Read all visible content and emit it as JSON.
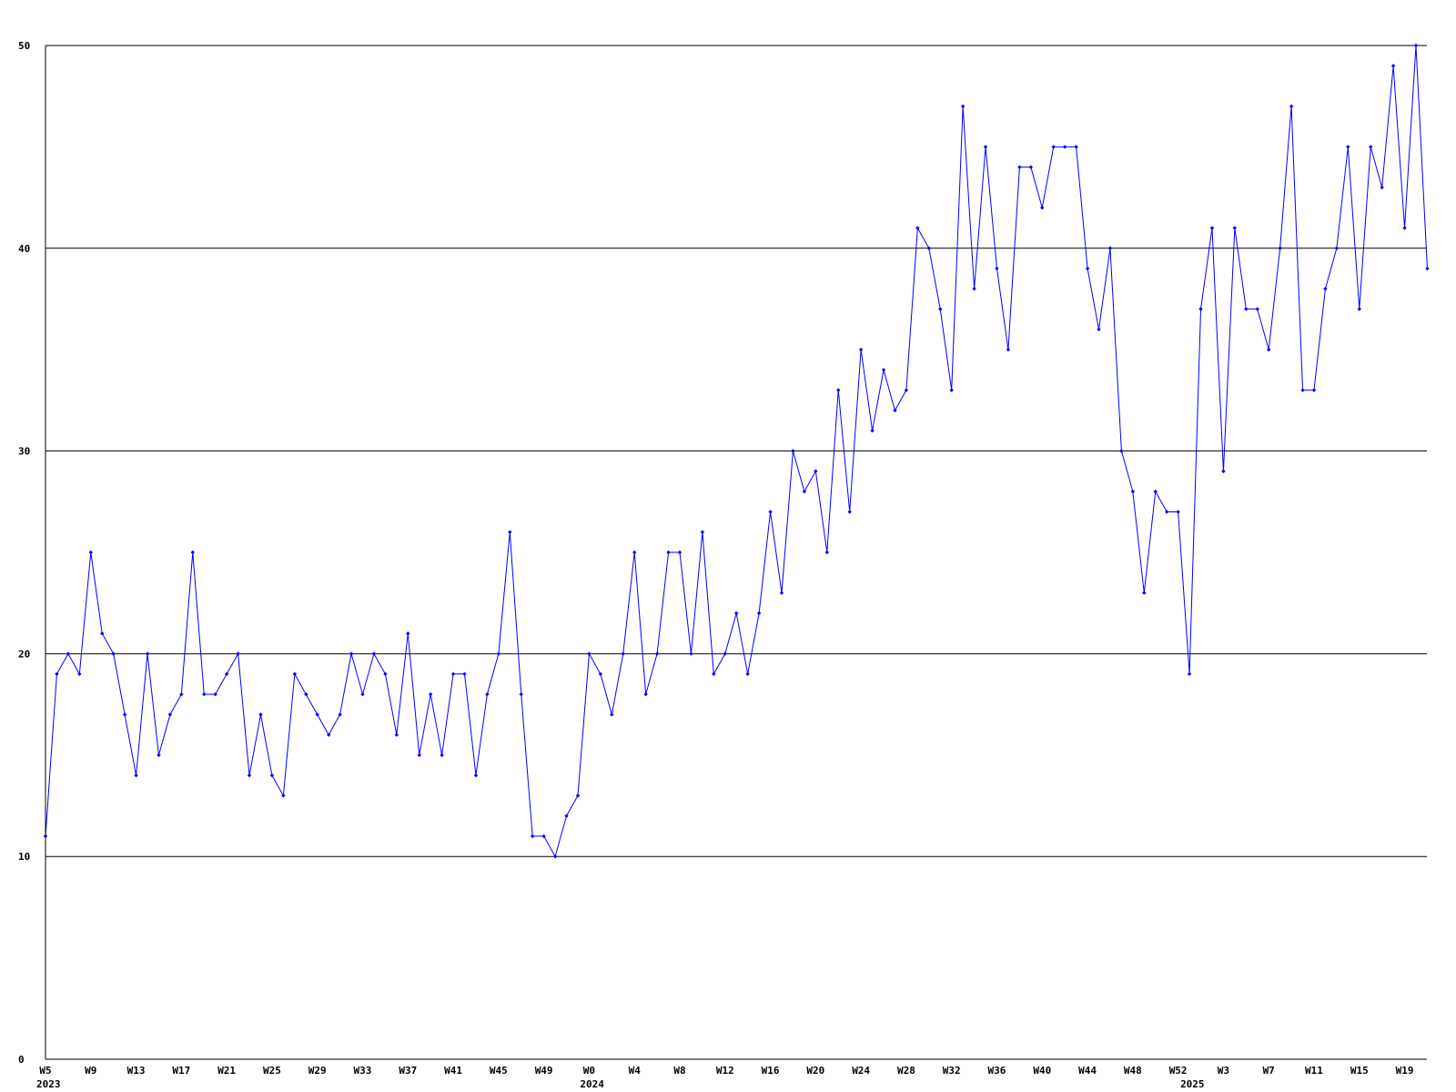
{
  "chart_data": {
    "type": "line",
    "title": "",
    "xlabel": "",
    "ylabel": "",
    "ylim": [
      0,
      50
    ],
    "yticks": [
      0,
      10,
      20,
      30,
      40,
      50
    ],
    "grid": true,
    "colors": {
      "line": "#0000ff",
      "grid": "#000000",
      "axis": "#000000",
      "background": "#ffffff"
    },
    "x_tick_labels": [
      {
        "label": "W5",
        "index": 0
      },
      {
        "label": "W9",
        "index": 4
      },
      {
        "label": "W13",
        "index": 8
      },
      {
        "label": "W17",
        "index": 12
      },
      {
        "label": "W21",
        "index": 16
      },
      {
        "label": "W25",
        "index": 20
      },
      {
        "label": "W29",
        "index": 24
      },
      {
        "label": "W33",
        "index": 28
      },
      {
        "label": "W37",
        "index": 32
      },
      {
        "label": "W41",
        "index": 36
      },
      {
        "label": "W45",
        "index": 40
      },
      {
        "label": "W49",
        "index": 44
      },
      {
        "label": "W0",
        "index": 48
      },
      {
        "label": "W4",
        "index": 52
      },
      {
        "label": "W8",
        "index": 56
      },
      {
        "label": "W12",
        "index": 60
      },
      {
        "label": "W16",
        "index": 64
      },
      {
        "label": "W20",
        "index": 68
      },
      {
        "label": "W24",
        "index": 72
      },
      {
        "label": "W28",
        "index": 76
      },
      {
        "label": "W32",
        "index": 80
      },
      {
        "label": "W36",
        "index": 84
      },
      {
        "label": "W40",
        "index": 88
      },
      {
        "label": "W44",
        "index": 92
      },
      {
        "label": "W48",
        "index": 96
      },
      {
        "label": "W52",
        "index": 100
      },
      {
        "label": "W3",
        "index": 104
      },
      {
        "label": "W7",
        "index": 108
      },
      {
        "label": "W11",
        "index": 112
      },
      {
        "label": "W15",
        "index": 116
      },
      {
        "label": "W19",
        "index": 120
      }
    ],
    "year_labels": [
      {
        "label": "2023",
        "index": 0
      },
      {
        "label": "2024",
        "index": 48
      },
      {
        "label": "2025",
        "index": 101
      }
    ],
    "series": [
      {
        "values": [
          11,
          19,
          20,
          19,
          25,
          21,
          20,
          17,
          14,
          20,
          15,
          17,
          18,
          25,
          18,
          18,
          19,
          20,
          14,
          17,
          14,
          13,
          19,
          18,
          17,
          16,
          17,
          20,
          18,
          20,
          19,
          16,
          21,
          15,
          18,
          15,
          19,
          19,
          14,
          18,
          20,
          26,
          18,
          11,
          11,
          10,
          12,
          13,
          20,
          19,
          17,
          20,
          25,
          18,
          20,
          25,
          25,
          20,
          26,
          19,
          20,
          22,
          19,
          22,
          27,
          23,
          30,
          28,
          29,
          25,
          33,
          27,
          35,
          31,
          34,
          32,
          33,
          41,
          40,
          37,
          33,
          47,
          38,
          45,
          39,
          35,
          44,
          44,
          42,
          45,
          45,
          45,
          39,
          36,
          40,
          30,
          28,
          23,
          28,
          27,
          27,
          19,
          37,
          41,
          29,
          41,
          37,
          37,
          35,
          40,
          47,
          33,
          33,
          38,
          40,
          45,
          37,
          45,
          43,
          49,
          41,
          50,
          39
        ]
      }
    ]
  }
}
